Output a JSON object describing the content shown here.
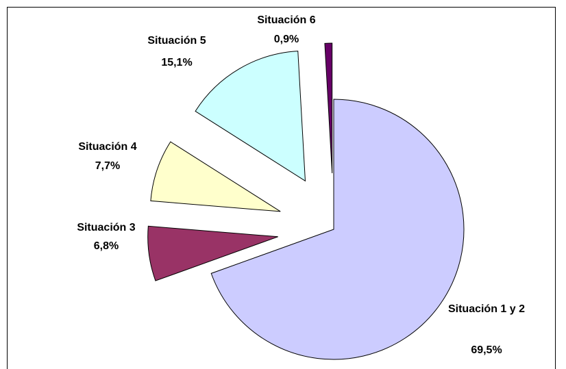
{
  "chart_data": {
    "type": "pie",
    "categories": [
      "Situación 1 y 2",
      "Situación 3",
      "Situación 4",
      "Situación 5",
      "Situación 6"
    ],
    "values": [
      69.5,
      6.8,
      7.7,
      15.1,
      0.9
    ],
    "value_labels": [
      "69,5%",
      "6,8%",
      "7,7%",
      "15,1%",
      "0,9%"
    ],
    "colors": [
      "#ccccff",
      "#993366",
      "#ffffcc",
      "#ccffff",
      "#660066"
    ]
  }
}
